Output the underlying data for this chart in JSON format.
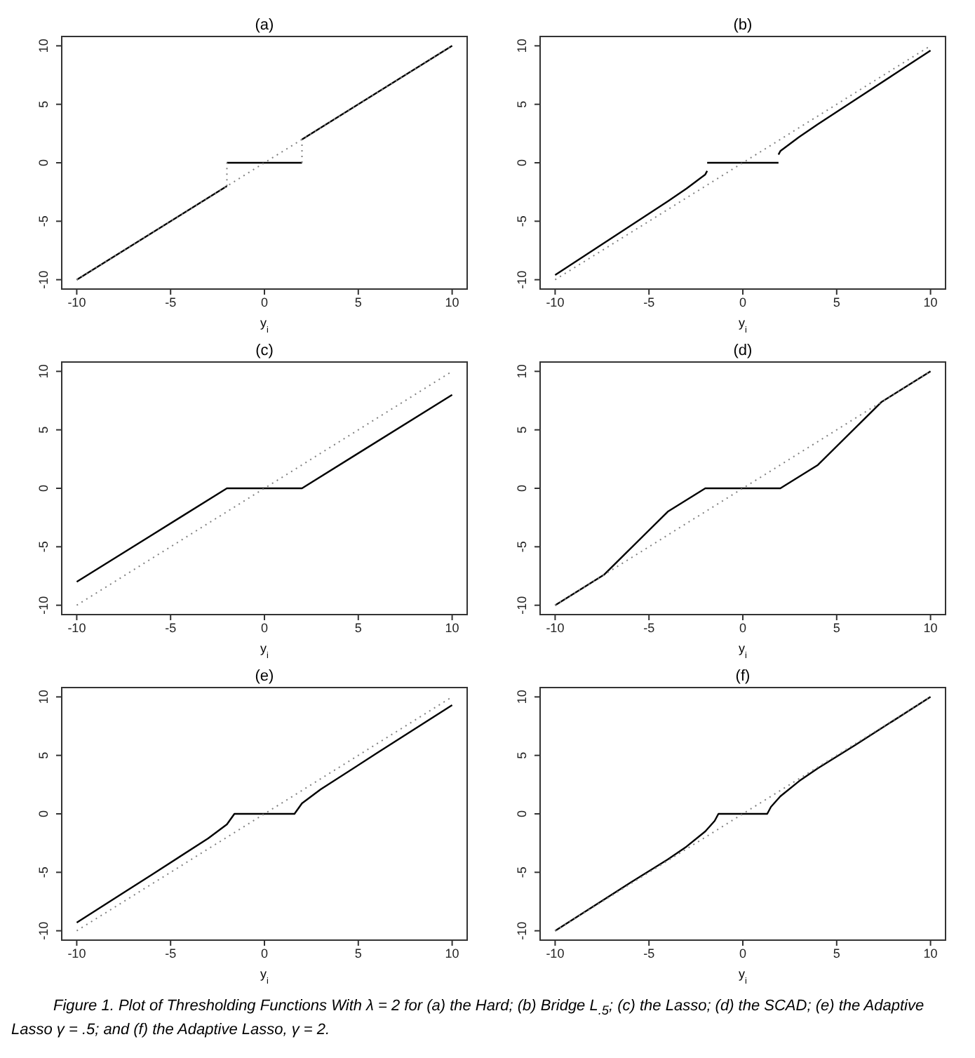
{
  "chart_data": [
    {
      "type": "line",
      "title": "(a)",
      "xlabel": "y$_{i}$",
      "xlim": [
        -10.8,
        10.8
      ],
      "ylim": [
        -10.8,
        10.8
      ],
      "xticks": [
        -10,
        -5,
        0,
        5,
        10
      ],
      "yticks": [
        -10,
        -5,
        0,
        5,
        10
      ],
      "series": [
        {
          "color": "#000000",
          "line_style": "solid",
          "x": [
            -10,
            -2
          ],
          "values": [
            -10,
            -2
          ]
        },
        {
          "color": "#000000",
          "line_style": "solid",
          "x": [
            -2,
            2
          ],
          "values": [
            0,
            0
          ]
        },
        {
          "color": "#000000",
          "line_style": "solid",
          "x": [
            2,
            10
          ],
          "values": [
            2,
            10
          ]
        },
        {
          "color": "#808080",
          "line_style": "dotted",
          "x": [
            -10,
            10
          ],
          "values": [
            -10,
            10
          ]
        },
        {
          "color": "#808080",
          "line_style": "dotted",
          "x": [
            -2,
            -2
          ],
          "values": [
            -2,
            0
          ]
        },
        {
          "color": "#808080",
          "line_style": "dotted",
          "x": [
            2,
            2
          ],
          "values": [
            0,
            2
          ]
        }
      ]
    },
    {
      "type": "line",
      "title": "(b)",
      "xlabel": "y$_{i}$",
      "xlim": [
        -10.8,
        10.8
      ],
      "ylim": [
        -10.8,
        10.8
      ],
      "xticks": [
        -10,
        -5,
        0,
        5,
        10
      ],
      "yticks": [
        -10,
        -5,
        0,
        5,
        10
      ],
      "series": [
        {
          "color": "#000000",
          "line_style": "solid",
          "x": [
            -10,
            -8,
            -6,
            -4,
            -3,
            -2.5,
            -2,
            -1.9
          ],
          "values": [
            -9.6,
            -7.5,
            -5.4,
            -3.3,
            -2.2,
            -1.6,
            -1,
            -0.7
          ]
        },
        {
          "color": "#000000",
          "line_style": "solid",
          "x": [
            -1.9,
            1.9
          ],
          "values": [
            0,
            0
          ]
        },
        {
          "color": "#000000",
          "line_style": "solid",
          "x": [
            1.9,
            2,
            2.5,
            3,
            4,
            6,
            8,
            10
          ],
          "values": [
            0.7,
            1,
            1.6,
            2.2,
            3.3,
            5.4,
            7.5,
            9.6
          ]
        },
        {
          "color": "#808080",
          "line_style": "dotted",
          "x": [
            -10,
            10
          ],
          "values": [
            -10,
            10
          ]
        }
      ]
    },
    {
      "type": "line",
      "title": "(c)",
      "xlabel": "y$_{i}$",
      "xlim": [
        -10.8,
        10.8
      ],
      "ylim": [
        -10.8,
        10.8
      ],
      "xticks": [
        -10,
        -5,
        0,
        5,
        10
      ],
      "yticks": [
        -10,
        -5,
        0,
        5,
        10
      ],
      "series": [
        {
          "color": "#000000",
          "line_style": "solid",
          "x": [
            -10,
            -2,
            2,
            10
          ],
          "values": [
            -8,
            0,
            0,
            8
          ]
        },
        {
          "color": "#808080",
          "line_style": "dotted",
          "x": [
            -10,
            10
          ],
          "values": [
            -10,
            10
          ]
        }
      ]
    },
    {
      "type": "line",
      "title": "(d)",
      "xlabel": "y$_{i}$",
      "xlim": [
        -10.8,
        10.8
      ],
      "ylim": [
        -10.8,
        10.8
      ],
      "xticks": [
        -10,
        -5,
        0,
        5,
        10
      ],
      "yticks": [
        -10,
        -5,
        0,
        5,
        10
      ],
      "series": [
        {
          "color": "#000000",
          "line_style": "solid",
          "x": [
            -10,
            -7.4,
            -4,
            -2,
            2,
            4,
            7.4,
            10
          ],
          "values": [
            -10,
            -7.4,
            -2,
            0,
            0,
            2,
            7.4,
            10
          ]
        },
        {
          "color": "#808080",
          "line_style": "dotted",
          "x": [
            -10,
            10
          ],
          "values": [
            -10,
            10
          ]
        }
      ]
    },
    {
      "type": "line",
      "title": "(e)",
      "xlabel": "y$_{i}$",
      "xlim": [
        -10.8,
        10.8
      ],
      "ylim": [
        -10.8,
        10.8
      ],
      "xticks": [
        -10,
        -5,
        0,
        5,
        10
      ],
      "yticks": [
        -10,
        -5,
        0,
        5,
        10
      ],
      "series": [
        {
          "color": "#000000",
          "line_style": "solid",
          "x": [
            -10,
            -6,
            -3,
            -2,
            -1.6,
            1.6,
            2,
            3,
            6,
            10
          ],
          "values": [
            -9.3,
            -5.2,
            -2.1,
            -0.9,
            0,
            0,
            0.9,
            2.1,
            5.2,
            9.3
          ]
        },
        {
          "color": "#808080",
          "line_style": "dotted",
          "x": [
            -10,
            10
          ],
          "values": [
            -10,
            10
          ]
        }
      ]
    },
    {
      "type": "line",
      "title": "(f)",
      "xlabel": "y$_{i}$",
      "xlim": [
        -10.8,
        10.8
      ],
      "ylim": [
        -10.8,
        10.8
      ],
      "xticks": [
        -10,
        -5,
        0,
        5,
        10
      ],
      "yticks": [
        -10,
        -5,
        0,
        5,
        10
      ],
      "series": [
        {
          "color": "#000000",
          "line_style": "solid",
          "x": [
            -10,
            -6,
            -4,
            -3,
            -2,
            -1.5,
            -1.3,
            1.3,
            1.5,
            2,
            3,
            4,
            6,
            10
          ],
          "values": [
            -10,
            -5.9,
            -3.9,
            -2.8,
            -1.5,
            -0.6,
            0,
            0,
            0.6,
            1.5,
            2.8,
            3.9,
            5.9,
            10
          ]
        },
        {
          "color": "#808080",
          "line_style": "dotted",
          "x": [
            -10,
            10
          ],
          "values": [
            -10,
            10
          ]
        }
      ],
      "annotations": [
        "Figure 1. Plot of Thresholding Functions With λ = 2 for (a) the Hard; (b) Bridge L$_{.5}$; (c) the Lasso; (d) the SCAD; (e) the Adaptive Lasso γ = .5; and (f) the Adaptive Lasso, γ = 2."
      ]
    }
  ]
}
